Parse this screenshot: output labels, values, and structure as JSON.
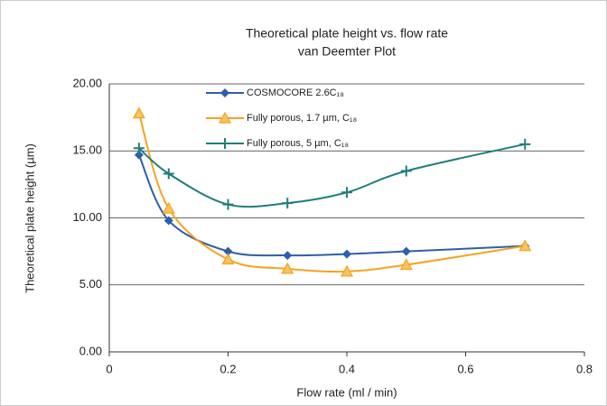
{
  "chart_data": {
    "type": "line",
    "title": "Theoretical plate height vs. flow rate",
    "subtitle": "van Deemter Plot",
    "x_label": "Flow rate (ml / min)",
    "y_label": "Theoretical plate height  (µm)",
    "x": [
      0.05,
      0.1,
      0.2,
      0.3,
      0.4,
      0.5,
      0.7
    ],
    "series": [
      {
        "name": "COSMOCORE 2.6C₁₈",
        "color": "#2e5fa8",
        "marker": "diamond",
        "values": [
          14.7,
          9.8,
          7.5,
          7.2,
          7.3,
          7.5,
          7.9
        ]
      },
      {
        "name": "Fully porous, 1.7 µm, C₁₈",
        "color": "#f5a31f",
        "marker": "triangle",
        "values": [
          17.8,
          10.7,
          6.9,
          6.2,
          6.0,
          6.5,
          7.9
        ]
      },
      {
        "name": "Fully porous, 5 µm, C₁₈",
        "color": "#1f7f7a",
        "marker": "plus",
        "values": [
          15.2,
          13.3,
          11.0,
          11.1,
          11.9,
          13.5,
          15.5
        ]
      }
    ],
    "xlim": [
      0,
      0.8
    ],
    "xticks": [
      0,
      0.2,
      0.4,
      0.6,
      0.8
    ],
    "ylim": [
      0,
      20
    ],
    "yticks": [
      {
        "value": 0,
        "label": "0.00"
      },
      {
        "value": 5,
        "label": "5.00"
      },
      {
        "value": 10,
        "label": "10.00"
      },
      {
        "value": 15,
        "label": "15.00"
      },
      {
        "value": 20,
        "label": "20.00"
      }
    ],
    "grid": true
  }
}
